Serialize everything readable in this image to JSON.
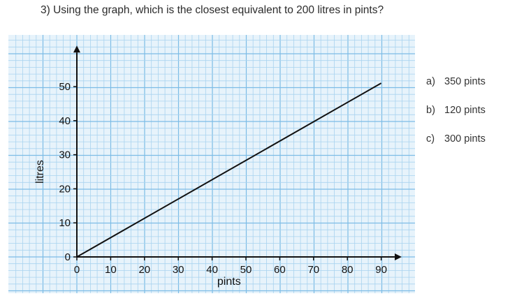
{
  "question": "3) Using the graph, which is the closest equivalent to 200 litres in pints?",
  "options": [
    {
      "letter": "a)",
      "text": "350 pints"
    },
    {
      "letter": "b)",
      "text": "120 pints"
    },
    {
      "letter": "c)",
      "text": "300 pints"
    }
  ],
  "colors": {
    "grid_bg": "#e7f3fb",
    "grid_minor": "#a9d3ef",
    "grid_major": "#7cbce6",
    "line": "#111111"
  },
  "chart_data": {
    "type": "line",
    "title": "",
    "xlabel": "pints",
    "ylabel": "litres",
    "xticks": [
      0,
      10,
      20,
      30,
      40,
      50,
      60,
      70,
      80,
      90
    ],
    "yticks": [
      0,
      10,
      20,
      30,
      40,
      50
    ],
    "grid": true,
    "series": [
      {
        "x": [
          0,
          90
        ],
        "y": [
          0,
          51
        ]
      }
    ]
  }
}
